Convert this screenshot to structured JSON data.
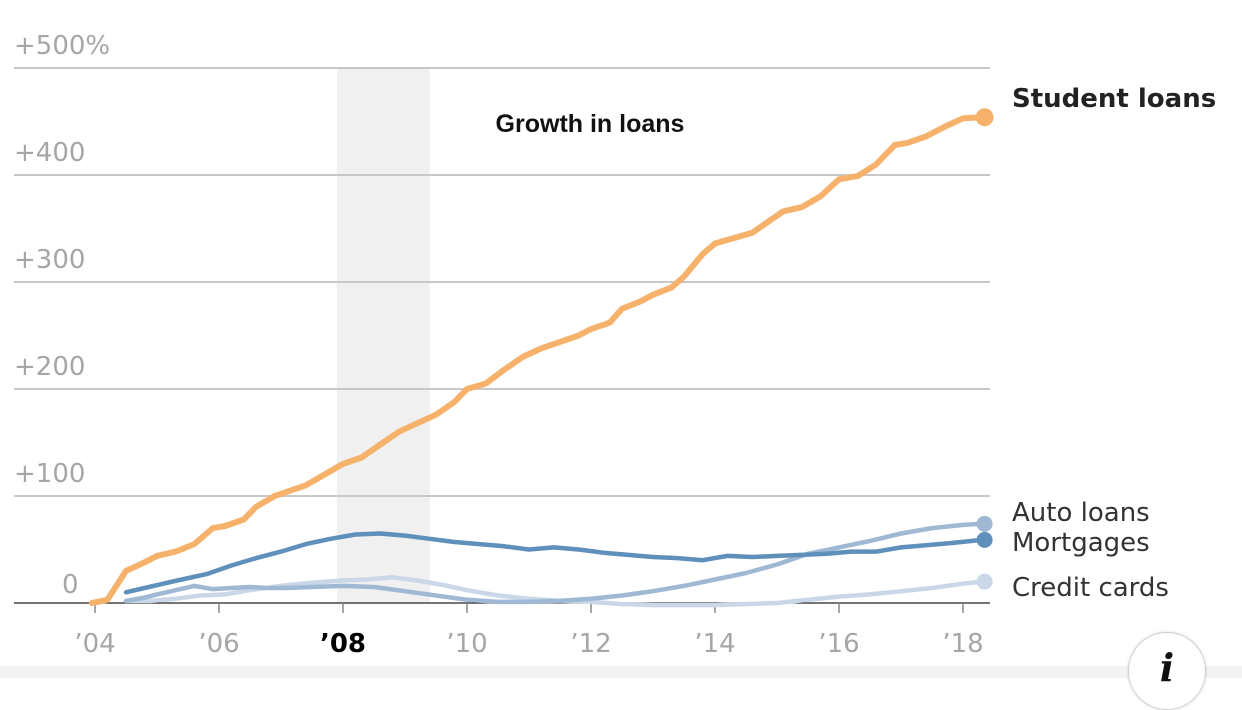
{
  "chart_data": {
    "type": "line",
    "title": "Growth in loans",
    "y_tick_labels": [
      "0",
      "+100",
      "+200",
      "+300",
      "+400",
      "+500%"
    ],
    "y_ticks": [
      0,
      100,
      200,
      300,
      400,
      500
    ],
    "ylim": [
      0,
      500
    ],
    "x_tick_labels": [
      "’04",
      "’06",
      "’08",
      "’10",
      "’12",
      "’14",
      "’16",
      "’18"
    ],
    "x_ticks": [
      2004,
      2006,
      2008,
      2010,
      2012,
      2014,
      2016,
      2018
    ],
    "highlighted_x_tick": "’08",
    "xlim": [
      2004,
      2018.3
    ],
    "shaded_period": [
      2007.9,
      2009.4
    ],
    "grid": true,
    "series": [
      {
        "name": "Student loans",
        "color": "#f6b26b",
        "label_bold": true,
        "x": [
          2003.95,
          2004.2,
          2004.5,
          2004.8,
          2005.0,
          2005.3,
          2005.6,
          2005.9,
          2006.1,
          2006.4,
          2006.6,
          2006.9,
          2007.1,
          2007.4,
          2007.7,
          2008.0,
          2008.3,
          2008.6,
          2008.9,
          2009.2,
          2009.5,
          2009.8,
          2010.0,
          2010.3,
          2010.6,
          2010.9,
          2011.2,
          2011.5,
          2011.8,
          2012.0,
          2012.3,
          2012.5,
          2012.8,
          2013.0,
          2013.3,
          2013.5,
          2013.8,
          2014.0,
          2014.3,
          2014.6,
          2014.9,
          2015.1,
          2015.4,
          2015.7,
          2016.0,
          2016.3,
          2016.6,
          2016.9,
          2017.1,
          2017.4,
          2017.7,
          2018.0,
          2018.3
        ],
        "values": [
          0,
          3,
          30,
          38,
          44,
          48,
          55,
          70,
          72,
          78,
          90,
          100,
          104,
          110,
          120,
          130,
          136,
          148,
          160,
          168,
          176,
          188,
          200,
          205,
          218,
          230,
          238,
          244,
          250,
          256,
          262,
          275,
          282,
          288,
          295,
          305,
          326,
          336,
          341,
          346,
          358,
          366,
          370,
          380,
          396,
          399,
          410,
          428,
          430,
          436,
          445,
          453,
          454
        ]
      },
      {
        "name": "Auto loans",
        "color": "#9fb8d4",
        "label_bold": false,
        "x": [
          2004.5,
          2004.8,
          2005.0,
          2005.3,
          2005.6,
          2005.9,
          2006.2,
          2006.5,
          2006.8,
          2007.1,
          2007.5,
          2008.0,
          2008.5,
          2009.0,
          2009.5,
          2010.0,
          2010.5,
          2011.0,
          2011.5,
          2012.0,
          2012.5,
          2013.0,
          2013.5,
          2014.0,
          2014.5,
          2015.0,
          2015.5,
          2016.0,
          2016.5,
          2017.0,
          2017.5,
          2018.0,
          2018.3
        ],
        "values": [
          2,
          5,
          8,
          12,
          16,
          13,
          14,
          15,
          14,
          14,
          15,
          16,
          15,
          11,
          7,
          3,
          1,
          1,
          2,
          4,
          7,
          11,
          16,
          22,
          28,
          36,
          46,
          52,
          58,
          65,
          70,
          73,
          74
        ]
      },
      {
        "name": "Mortgages",
        "color": "#5f8fbb",
        "label_bold": false,
        "x": [
          2004.5,
          2004.8,
          2005.1,
          2005.4,
          2005.8,
          2006.2,
          2006.6,
          2007.0,
          2007.4,
          2007.8,
          2008.2,
          2008.6,
          2009.0,
          2009.4,
          2009.8,
          2010.2,
          2010.6,
          2011.0,
          2011.4,
          2011.8,
          2012.2,
          2012.6,
          2013.0,
          2013.4,
          2013.8,
          2014.2,
          2014.6,
          2015.0,
          2015.4,
          2015.8,
          2016.2,
          2016.6,
          2017.0,
          2017.4,
          2017.8,
          2018.3
        ],
        "values": [
          10,
          14,
          18,
          22,
          27,
          35,
          42,
          48,
          55,
          60,
          64,
          65,
          63,
          60,
          57,
          55,
          53,
          50,
          52,
          50,
          47,
          45,
          43,
          42,
          40,
          44,
          43,
          44,
          45,
          46,
          48,
          48,
          52,
          54,
          56,
          59
        ]
      },
      {
        "name": "Credit cards",
        "color": "#c9d7e8",
        "label_bold": false,
        "x": [
          2004.5,
          2004.9,
          2005.3,
          2005.7,
          2006.1,
          2006.5,
          2007.0,
          2007.5,
          2008.0,
          2008.4,
          2008.8,
          2009.2,
          2009.6,
          2010.0,
          2010.5,
          2011.0,
          2011.5,
          2012.0,
          2012.5,
          2013.0,
          2013.5,
          2014.0,
          2014.5,
          2015.0,
          2015.5,
          2016.0,
          2016.5,
          2017.0,
          2017.5,
          2018.0,
          2018.3
        ],
        "values": [
          2,
          2,
          4,
          7,
          8,
          12,
          16,
          19,
          21,
          22,
          24,
          21,
          17,
          12,
          7,
          4,
          2,
          1,
          -1,
          -2,
          -2,
          -2,
          -1,
          0,
          3,
          6,
          8,
          11,
          14,
          18,
          20
        ]
      }
    ]
  },
  "info_button": {
    "icon": "info-icon",
    "glyph": "i"
  }
}
